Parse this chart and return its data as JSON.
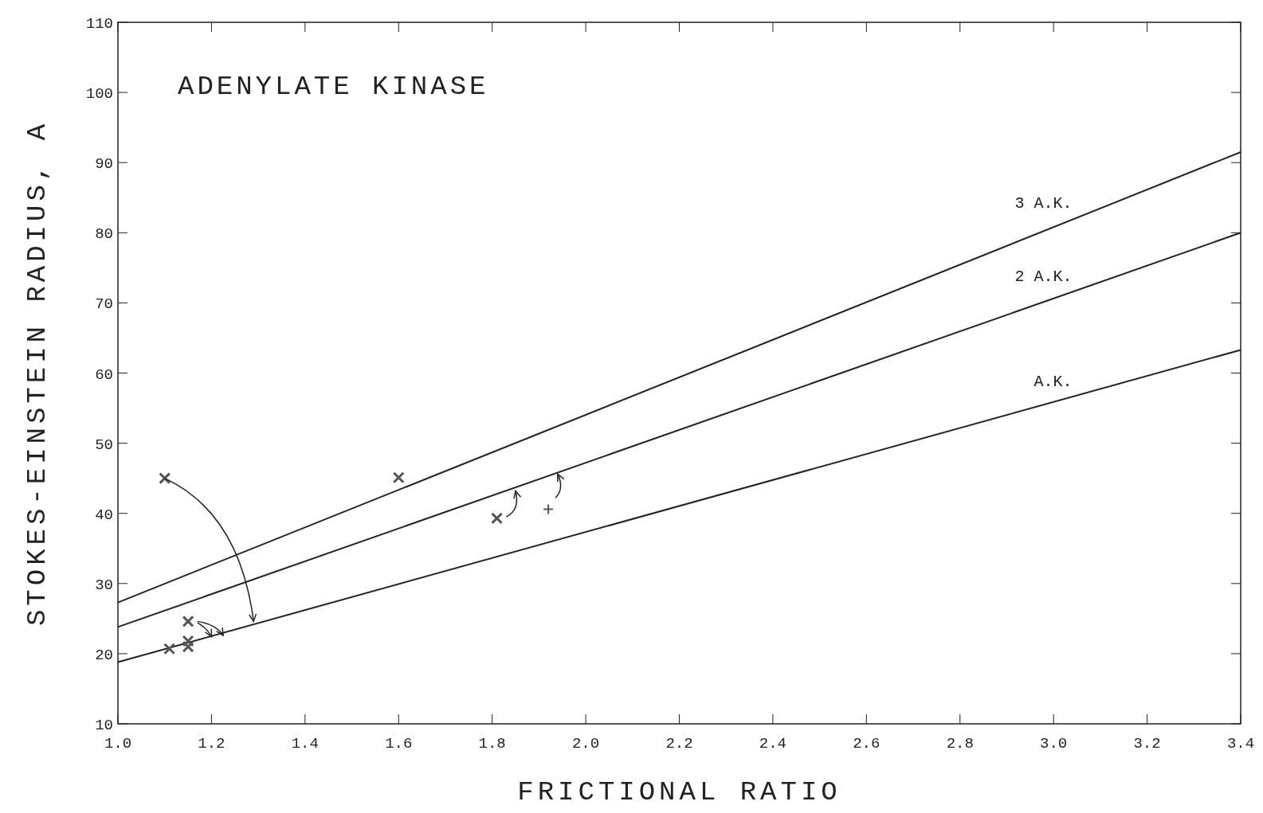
{
  "chart_data": {
    "type": "line",
    "title": "ADENYLATE KINASE",
    "xlabel": "FRICTIONAL RATIO",
    "ylabel": "STOKES-EINSTEIN RADIUS, A",
    "xlim": [
      1.0,
      3.4
    ],
    "ylim": [
      10,
      110
    ],
    "xticks": [
      {
        "value": 1.0,
        "label": "1.0"
      },
      {
        "value": 1.2,
        "label": "1.2"
      },
      {
        "value": 1.4,
        "label": "1.4"
      },
      {
        "value": 1.6,
        "label": "1.6"
      },
      {
        "value": 1.8,
        "label": "1.8"
      },
      {
        "value": 2.0,
        "label": "2.0"
      },
      {
        "value": 2.2,
        "label": "2.2"
      },
      {
        "value": 2.4,
        "label": "2.4"
      },
      {
        "value": 2.6,
        "label": "2.6"
      },
      {
        "value": 2.8,
        "label": "2.8"
      },
      {
        "value": 3.0,
        "label": "3.0"
      },
      {
        "value": 3.2,
        "label": "3.2"
      },
      {
        "value": 3.4,
        "label": "3.4"
      }
    ],
    "yticks": [
      10,
      20,
      30,
      40,
      50,
      60,
      70,
      80,
      90,
      100,
      110
    ],
    "grid": false,
    "line_style": "solid",
    "marker": "none",
    "series": [
      {
        "name": "3 A.K.",
        "color": "#222222",
        "x": [
          1.0,
          3.4
        ],
        "values": [
          27.3,
          91.5
        ]
      },
      {
        "name": "2 A.K.",
        "color": "#222222",
        "x": [
          1.0,
          3.4
        ],
        "values": [
          23.8,
          80.0
        ]
      },
      {
        "name": "A.K.",
        "color": "#222222",
        "x": [
          1.0,
          3.4
        ],
        "values": [
          18.8,
          63.3
        ]
      },
      {
        "type": "scatter",
        "marker": "cross",
        "color": "#555555",
        "x": [
          1.1,
          1.6,
          1.81,
          1.15,
          1.15,
          1.15,
          1.11
        ],
        "values": [
          45,
          45.1,
          39.3,
          24.6,
          21.8,
          21.0,
          20.7
        ]
      },
      {
        "type": "scatter",
        "marker": "plus",
        "color": "#555555",
        "x": [
          1.92
        ],
        "values": [
          40.6
        ]
      }
    ]
  }
}
